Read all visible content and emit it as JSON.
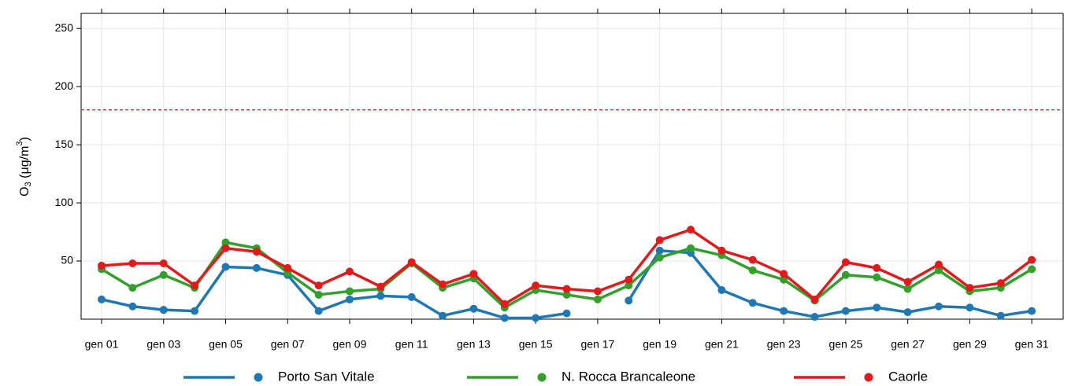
{
  "chart_data": {
    "type": "line",
    "ylabel_parts": [
      "O",
      "3",
      " (μg/m",
      "3",
      ")"
    ],
    "categories": [
      "gen 01",
      null,
      "gen 03",
      null,
      "gen 05",
      null,
      "gen 07",
      null,
      "gen 09",
      null,
      "gen 11",
      null,
      "gen 13",
      null,
      "gen 15",
      null,
      "gen 17",
      null,
      "gen 19",
      null,
      "gen 21",
      null,
      "gen 23",
      null,
      "gen 25",
      null,
      "gen 27",
      null,
      "gen 29",
      null,
      "gen 31"
    ],
    "series": [
      {
        "name": "Porto San Vitale",
        "color": "#1f78b4",
        "values": [
          17,
          11,
          8,
          7,
          45,
          44,
          38,
          7,
          17,
          20,
          19,
          3,
          9,
          1,
          1,
          5,
          null,
          16,
          59,
          57,
          25,
          14,
          7,
          2,
          7,
          10,
          6,
          11,
          10,
          3,
          7
        ]
      },
      {
        "name": "N. Rocca Brancaleone",
        "color": "#33a02c",
        "values": [
          43,
          27,
          38,
          27,
          66,
          61,
          40,
          21,
          24,
          26,
          48,
          27,
          35,
          10,
          25,
          21,
          17,
          29,
          53,
          61,
          55,
          42,
          34,
          16,
          38,
          36,
          26,
          42,
          24,
          27,
          43
        ]
      },
      {
        "name": "Caorle",
        "color": "#e31a1c",
        "values": [
          46,
          48,
          48,
          29,
          61,
          58,
          44,
          29,
          41,
          28,
          49,
          30,
          39,
          13,
          29,
          26,
          24,
          34,
          68,
          77,
          59,
          51,
          39,
          17,
          49,
          44,
          32,
          47,
          27,
          31,
          51
        ]
      }
    ],
    "threshold": 180,
    "threshold_color": "#e31a1c",
    "ylim": [
      0,
      263
    ],
    "yticks": [
      50,
      100,
      150,
      200,
      250
    ],
    "grid": true
  }
}
